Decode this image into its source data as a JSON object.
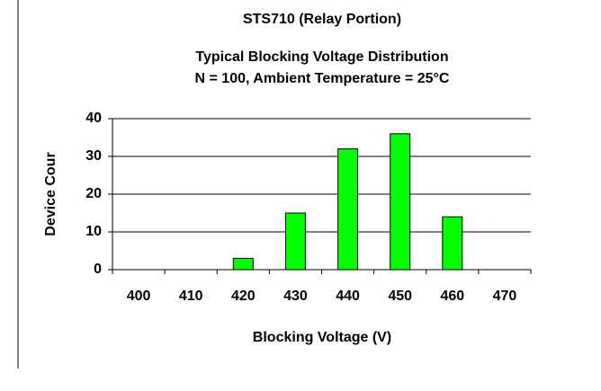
{
  "chart_data": {
    "type": "bar",
    "title": "STS710 (Relay Portion)",
    "subtitle": [
      "Typical Blocking Voltage Distribution",
      "N = 100, Ambient Temperature = 25°C"
    ],
    "x_label": "Blocking Voltage (V)",
    "y_label": "Device Cour",
    "categories": [
      400,
      410,
      420,
      430,
      440,
      450,
      460,
      470
    ],
    "values": [
      0,
      0,
      3,
      15,
      32,
      36,
      14,
      0
    ],
    "color": "#00ff00",
    "ylim": [
      0,
      40
    ],
    "yticks": [
      0,
      10,
      20,
      30,
      40
    ],
    "grid": true
  }
}
